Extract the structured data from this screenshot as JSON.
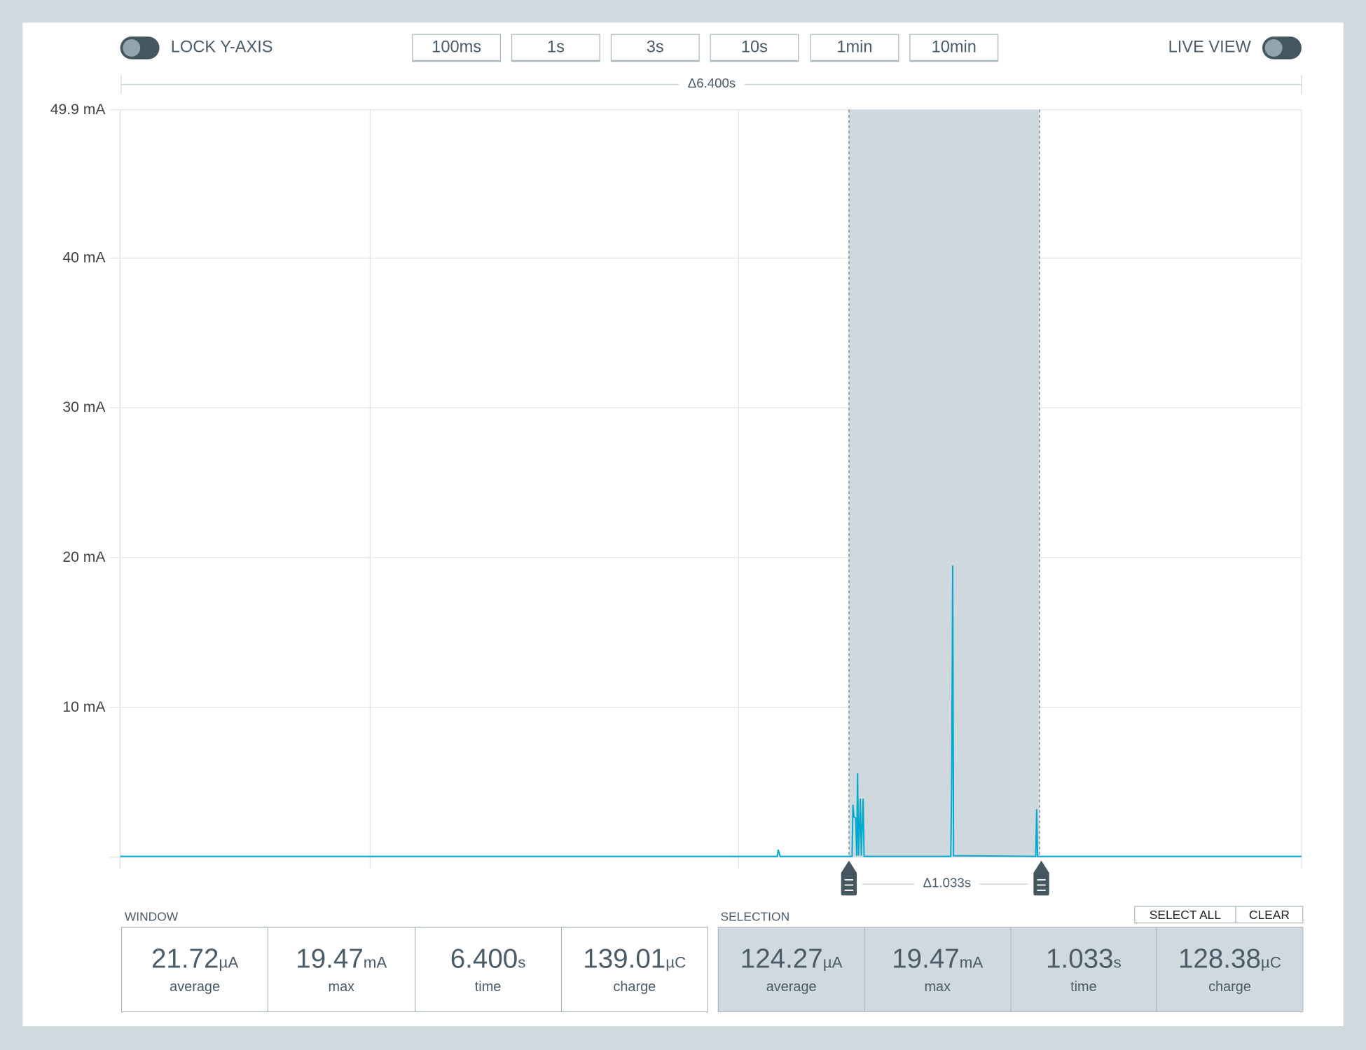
{
  "header": {
    "lock_y_axis": {
      "label": "LOCK Y-AXIS",
      "on": false
    },
    "live_view": {
      "label": "LIVE VIEW",
      "on": false
    },
    "window_buttons": [
      "100ms",
      "1s",
      "3s",
      "10s",
      "1min",
      "10min"
    ]
  },
  "window_delta": "Δ6.400s",
  "selection_delta": "Δ1.033s",
  "colors": {
    "trace": "#00a9ce",
    "selection": "#cfd8dd",
    "accent": "#44565f"
  },
  "chart_data": {
    "type": "line",
    "ylabel": "",
    "xlim": [
      0,
      6.4
    ],
    "ylim": [
      0,
      49.9
    ],
    "y_ticks": [
      "10 mA",
      "20 mA",
      "30 mA",
      "40 mA",
      "49.9 mA"
    ],
    "y_tick_values": [
      10,
      20,
      30,
      40,
      49.9
    ],
    "x_grid": [
      1.354,
      3.35,
      6.4
    ],
    "selection": [
      3.948,
      4.981
    ],
    "series": [
      {
        "points": [
          [
            0,
            0.05
          ],
          [
            3.56,
            0.05
          ],
          [
            3.565,
            0.5
          ],
          [
            3.575,
            0.05
          ],
          [
            3.965,
            0.05
          ],
          [
            3.97,
            3.5
          ],
          [
            3.975,
            2.7
          ],
          [
            3.985,
            2.6
          ],
          [
            3.99,
            0.1
          ],
          [
            3.995,
            5.6
          ],
          [
            4.0,
            0.1
          ],
          [
            4.01,
            3.9
          ],
          [
            4.015,
            0.1
          ],
          [
            4.025,
            3.9
          ],
          [
            4.03,
            0.05
          ],
          [
            4.5,
            0.05
          ],
          [
            4.505,
            5.4
          ],
          [
            4.51,
            19.47
          ],
          [
            4.515,
            0.1
          ],
          [
            4.96,
            0.05
          ],
          [
            4.965,
            3.2
          ],
          [
            4.97,
            0.05
          ],
          [
            6.4,
            0.05
          ]
        ]
      }
    ]
  },
  "window_stats": {
    "label": "WINDOW",
    "items": [
      {
        "value": "21.72",
        "unit": "µA",
        "caption": "average"
      },
      {
        "value": "19.47",
        "unit": "mA",
        "caption": "max"
      },
      {
        "value": "6.400",
        "unit": "s",
        "caption": "time"
      },
      {
        "value": "139.01",
        "unit": "µC",
        "caption": "charge"
      }
    ]
  },
  "selection_stats": {
    "label": "SELECTION",
    "select_all": "SELECT ALL",
    "clear": "CLEAR",
    "items": [
      {
        "value": "124.27",
        "unit": "µA",
        "caption": "average"
      },
      {
        "value": "19.47",
        "unit": "mA",
        "caption": "max"
      },
      {
        "value": "1.033",
        "unit": "s",
        "caption": "time"
      },
      {
        "value": "128.38",
        "unit": "µC",
        "caption": "charge"
      }
    ]
  }
}
